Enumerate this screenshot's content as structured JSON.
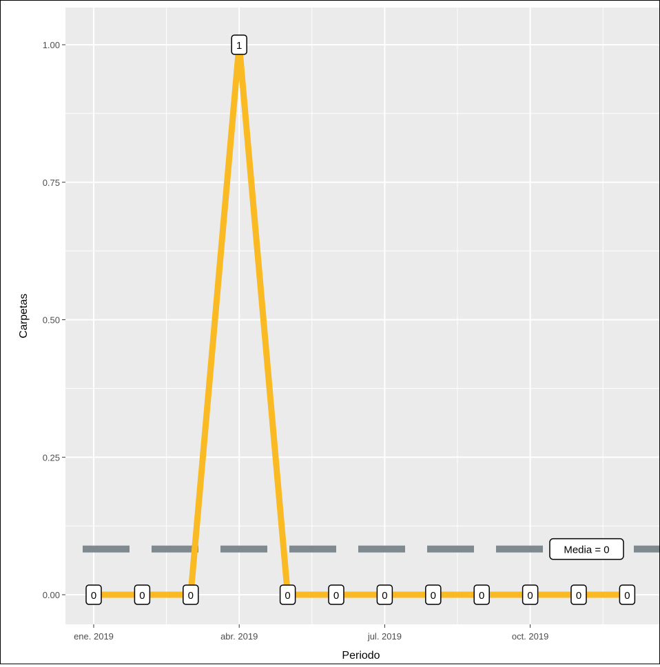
{
  "chart_data": {
    "type": "line",
    "title": "",
    "xlabel": "Periodo",
    "ylabel": "Carpetas",
    "x": [
      "2019-01",
      "2019-02",
      "2019-03",
      "2019-04",
      "2019-05",
      "2019-06",
      "2019-07",
      "2019-08",
      "2019-09",
      "2019-10",
      "2019-11",
      "2019-12"
    ],
    "values": [
      0,
      0,
      0,
      1,
      0,
      0,
      0,
      0,
      0,
      0,
      0,
      0
    ],
    "point_labels": [
      "0",
      "0",
      "0",
      "1",
      "0",
      "0",
      "0",
      "0",
      "0",
      "0",
      "0",
      "0"
    ],
    "ylim": [
      -0.05,
      1.05
    ],
    "y_ticks": [
      0.0,
      0.25,
      0.5,
      0.75,
      1.0
    ],
    "y_tick_labels": [
      "0.00",
      "0.25",
      "0.50",
      "0.75",
      "1.00"
    ],
    "x_ticks": [
      "2019-01",
      "2019-04",
      "2019-07",
      "2019-10"
    ],
    "x_tick_labels": [
      "ene. 2019",
      "abr. 2019",
      "jul. 2019",
      "oct. 2019"
    ],
    "mean_line": {
      "value": 0.083,
      "label": "Media = 0"
    },
    "grid": true,
    "legend": "none",
    "colors": {
      "line": "#F9BA24",
      "mean": "#7E8A90",
      "panel": "#EBEBEB",
      "grid": "#FFFFFF"
    }
  }
}
